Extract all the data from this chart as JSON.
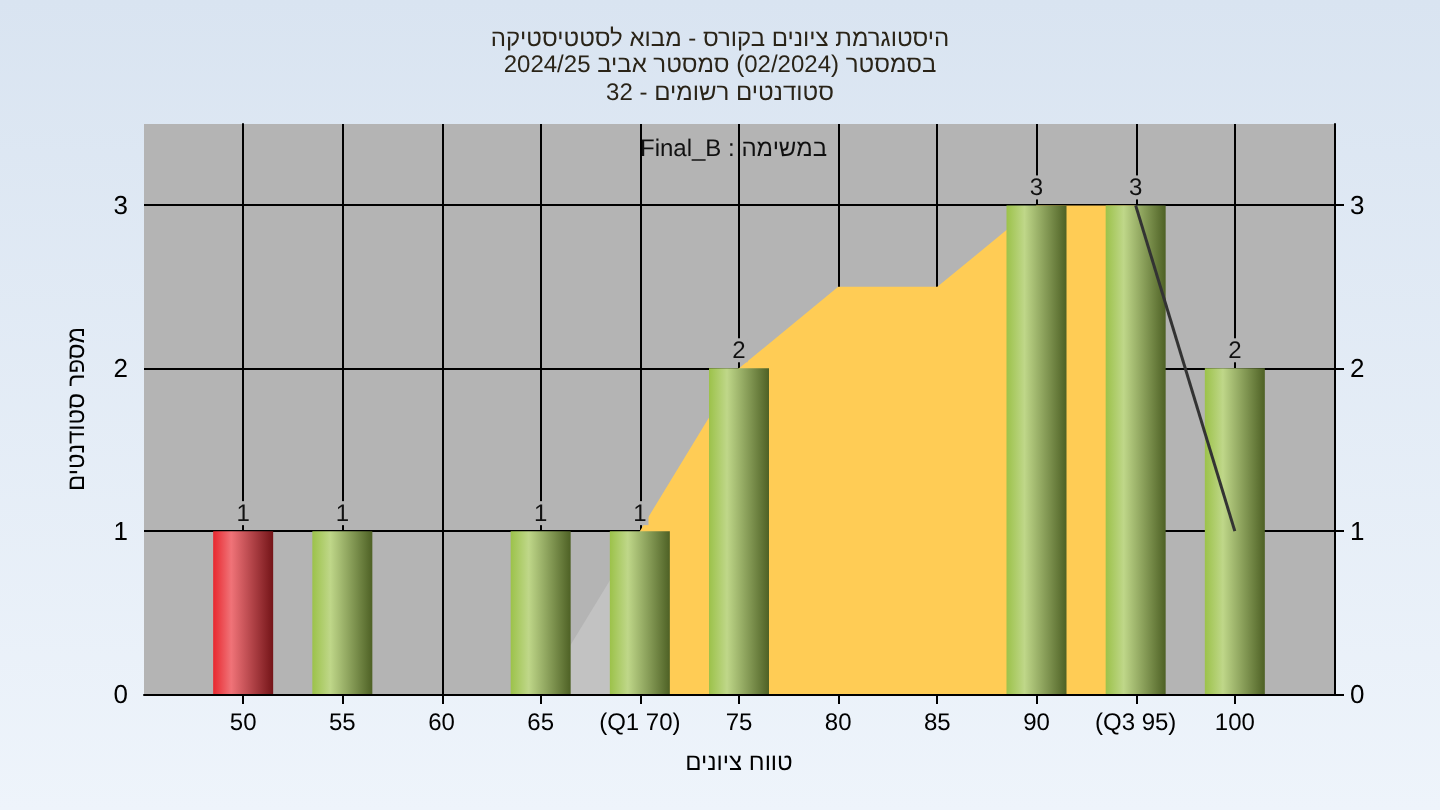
{
  "chart_data": {
    "type": "bar",
    "title": "היסטוגרמת ציונים בקורס - מבוא לסטטיסטיקה",
    "subtitle": "בסמסטר (02/2024) סמסטר אביב 2024/25\nסטודנטים רשומים - 32",
    "xlabel": "טווח ציונים",
    "ylabel": "מספר סטודנטים",
    "annotations": [
      "Final_B : במשימה"
    ],
    "categories": [
      "50",
      "55",
      "60",
      "65",
      "(Q1 70)",
      "75",
      "80",
      "85",
      "90",
      "(Q3 95)",
      "100"
    ],
    "series": [
      {
        "type": "area",
        "color": "#c2c2c2",
        "values": [
          null,
          null,
          null,
          0,
          1,
          null,
          null,
          null,
          null,
          null,
          null
        ]
      },
      {
        "type": "area",
        "color": "#ffcc55",
        "values": [
          null,
          null,
          null,
          null,
          1,
          2,
          2.5,
          2.5,
          3,
          3,
          null
        ]
      },
      {
        "type": "line",
        "color": "#333333",
        "values": [
          null,
          null,
          null,
          null,
          null,
          null,
          null,
          null,
          null,
          3,
          1
        ]
      },
      {
        "colors": [
          "#e8282f",
          "#9cc24a",
          "#9cc24a",
          "#9cc24a",
          "#9cc24a",
          "#9cc24a",
          "#9cc24a",
          "#9cc24a",
          "#9cc24a",
          "#9cc24a",
          "#9cc24a"
        ],
        "values": [
          1,
          1,
          0,
          1,
          1,
          2,
          0,
          0,
          3,
          3,
          2
        ],
        "value_labels": [
          "1",
          "1",
          null,
          "1",
          "1",
          "2",
          null,
          null,
          "3",
          "3",
          "2"
        ]
      }
    ],
    "ylim": [
      0,
      3.5
    ],
    "yticks": [
      0,
      1,
      2,
      3
    ],
    "y2lim": [
      0,
      3.5
    ],
    "y2ticks": [
      0,
      1,
      2,
      3
    ],
    "grid": true
  }
}
